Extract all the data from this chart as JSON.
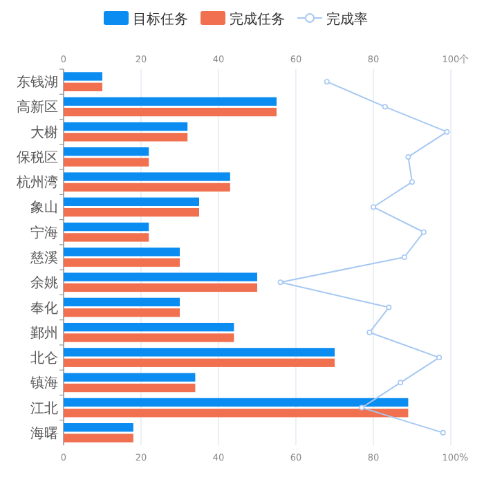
{
  "chart_data": {
    "type": "bar",
    "orientation": "horizontal",
    "categories": [
      "东钱湖",
      "高新区",
      "大榭",
      "保税区",
      "杭州湾",
      "象山",
      "宁海",
      "慈溪",
      "余姚",
      "奉化",
      "鄞州",
      "北仑",
      "镇海",
      "江北",
      "海曙"
    ],
    "x2label": "个",
    "xlabel": "%",
    "x2lim": [
      0,
      100
    ],
    "x2ticks": [
      0,
      20,
      40,
      60,
      80,
      100
    ],
    "xlim": [
      0,
      100
    ],
    "xticks": [
      0,
      20,
      40,
      60,
      80,
      100
    ],
    "grid": "x",
    "legend": "top",
    "series": [
      {
        "name": "目标任务",
        "color": "#0a8cf0",
        "axis": "x2",
        "values": [
          10,
          55,
          32,
          22,
          43,
          35,
          22,
          30,
          50,
          30,
          44,
          70,
          34,
          89,
          18
        ]
      },
      {
        "name": "完成任务",
        "color": "#f0704f",
        "axis": "x2",
        "values": [
          10,
          55,
          32,
          22,
          43,
          35,
          22,
          30,
          50,
          30,
          44,
          70,
          34,
          89,
          18
        ]
      },
      {
        "name": "完成率",
        "type": "line",
        "color": "#a6c8f2",
        "marker": "circle",
        "values": [
          68,
          83,
          99,
          89,
          90,
          80,
          93,
          88,
          56,
          84,
          79,
          97,
          87,
          77,
          98
        ]
      }
    ]
  }
}
